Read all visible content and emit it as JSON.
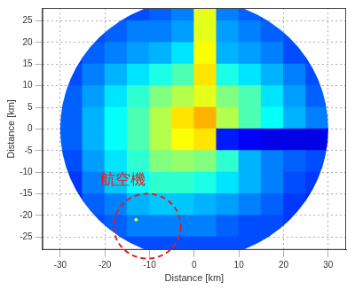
{
  "chart_data": {
    "type": "heatmap",
    "xlabel": "Distance [km]",
    "ylabel": "Distance [km]",
    "xlim": [
      -34,
      34
    ],
    "ylim": [
      -28,
      28
    ],
    "xticks": [
      -30,
      -20,
      -10,
      0,
      10,
      20,
      30
    ],
    "yticks": [
      -25,
      -20,
      -15,
      -10,
      -5,
      0,
      5,
      10,
      15,
      20,
      25
    ],
    "grid": true,
    "max_range": 30,
    "color_range": [
      0,
      1
    ],
    "cell_x": [
      -27.5,
      -22.5,
      -17.5,
      -12.5,
      -7.5,
      -2.5,
      2.5,
      7.5,
      12.5,
      17.5,
      22.5,
      27.5
    ],
    "cell_y": [
      27.5,
      22.5,
      17.5,
      12.5,
      7.5,
      2.5,
      -2.5,
      -7.5,
      -12.5,
      -17.5,
      -22.5,
      -27.5
    ],
    "cells": [
      [
        null,
        null,
        0.2,
        0.2,
        0.22,
        0.25,
        0.6,
        0.25,
        0.22,
        0.2,
        null,
        null
      ],
      [
        null,
        0.2,
        0.22,
        0.25,
        0.25,
        0.28,
        0.6,
        0.28,
        0.25,
        0.22,
        0.2,
        null
      ],
      [
        0.18,
        0.22,
        0.25,
        0.28,
        0.3,
        0.35,
        0.62,
        0.3,
        0.28,
        0.25,
        0.2,
        0.18
      ],
      [
        0.2,
        0.25,
        0.3,
        0.35,
        0.4,
        0.45,
        0.65,
        0.4,
        0.35,
        0.3,
        0.25,
        0.2
      ],
      [
        0.22,
        0.28,
        0.35,
        0.42,
        0.5,
        0.55,
        0.6,
        0.5,
        0.45,
        0.35,
        0.28,
        0.22
      ],
      [
        0.22,
        0.3,
        0.38,
        0.45,
        0.55,
        0.65,
        0.7,
        0.55,
        0.45,
        0.38,
        0.3,
        0.25
      ],
      [
        0.22,
        0.3,
        0.38,
        0.45,
        0.55,
        0.62,
        0.65,
        0.15,
        0.12,
        0.1,
        0.1,
        0.1
      ],
      [
        0.2,
        0.28,
        0.35,
        0.42,
        0.5,
        0.52,
        0.5,
        0.42,
        0.3,
        0.25,
        0.22,
        0.2
      ],
      [
        0.18,
        0.25,
        0.32,
        0.38,
        0.42,
        0.42,
        0.4,
        0.35,
        0.3,
        0.25,
        0.2,
        0.18
      ],
      [
        0.16,
        0.22,
        0.25,
        0.3,
        0.32,
        0.32,
        0.3,
        0.28,
        0.25,
        0.22,
        0.18,
        0.16
      ],
      [
        null,
        0.2,
        0.22,
        0.25,
        0.25,
        0.25,
        0.25,
        0.22,
        0.2,
        0.2,
        0.18,
        null
      ],
      [
        null,
        null,
        0.2,
        0.2,
        0.2,
        0.2,
        0.2,
        0.2,
        0.2,
        0.2,
        null,
        null
      ]
    ],
    "points": [
      {
        "x": -13,
        "y": -21,
        "value": 0.6
      }
    ],
    "annotations": [
      {
        "text": "航空機",
        "x": -16,
        "y": -12,
        "color": "#e02020",
        "circle": {
          "x": -10.5,
          "y": -22.5,
          "radius": 7.5
        }
      }
    ]
  }
}
